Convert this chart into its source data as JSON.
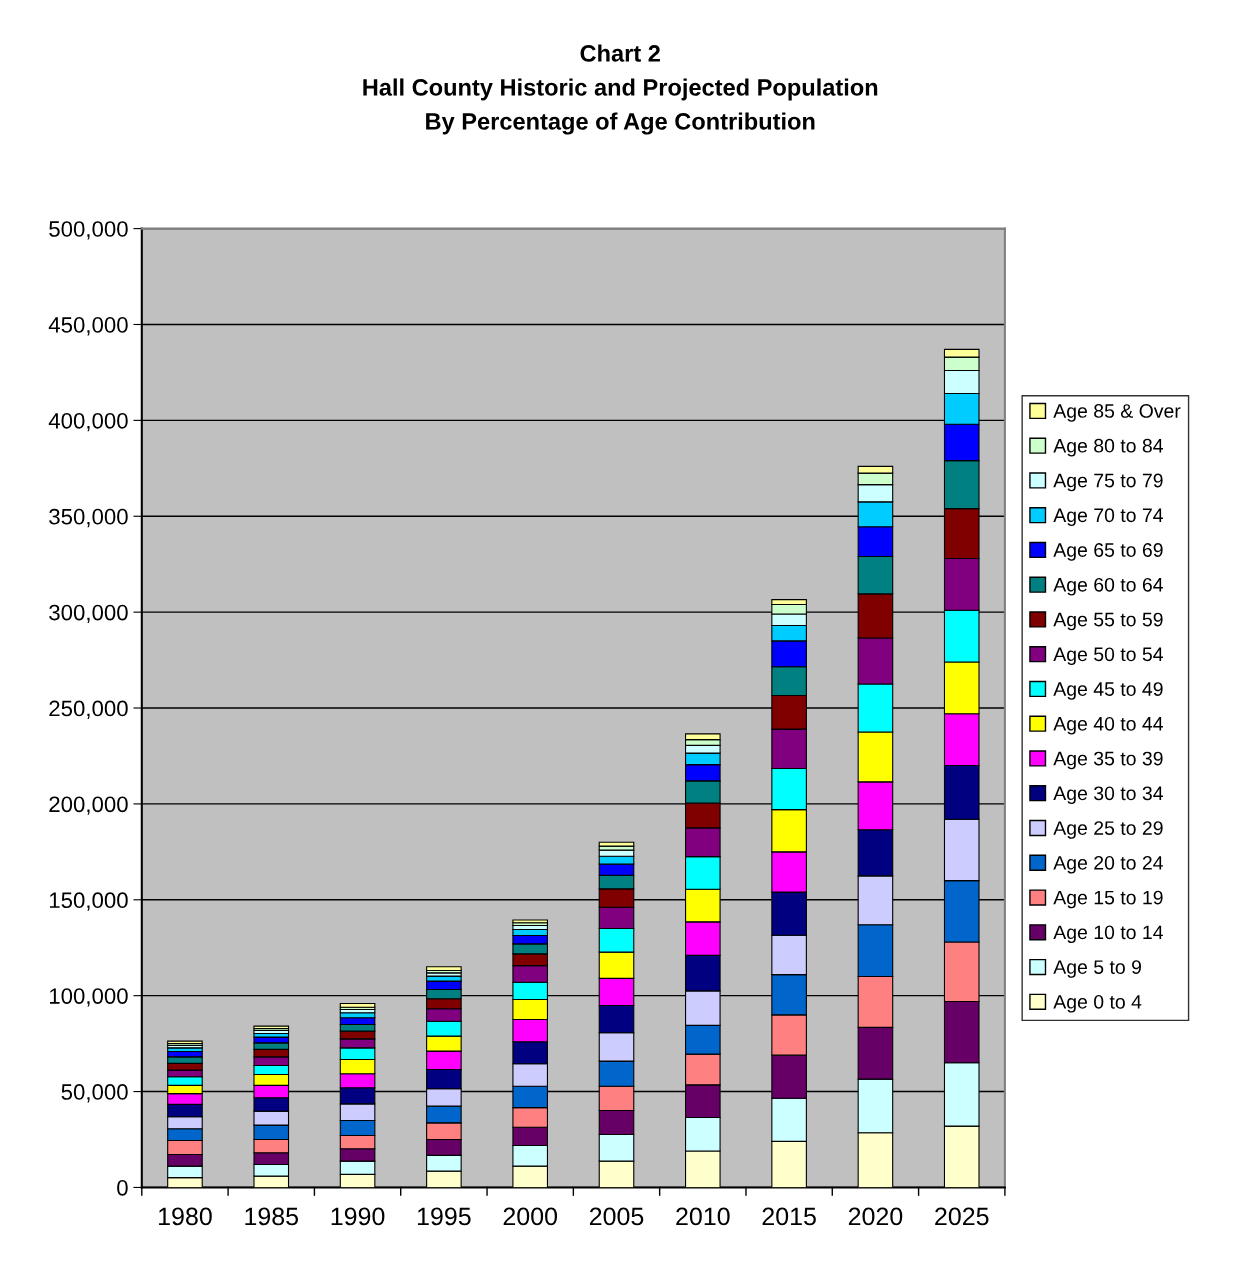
{
  "chart_data": {
    "type": "bar",
    "stacked": true,
    "title": "Chart 2\nHall County Historic and Projected Population\nBy Percentage of Age Contribution",
    "categories": [
      "1980",
      "1985",
      "1990",
      "1995",
      "2000",
      "2005",
      "2010",
      "2015",
      "2020",
      "2025"
    ],
    "series": [
      {
        "name": "Age 0 to 4",
        "color": "#ffffcc",
        "values": [
          5100,
          5900,
          6800,
          8500,
          11100,
          13700,
          19000,
          24000,
          28500,
          32000
        ]
      },
      {
        "name": "Age 5 to 9",
        "color": "#ccffff",
        "values": [
          6000,
          6100,
          6900,
          8200,
          10800,
          13900,
          17500,
          22500,
          28000,
          33000
        ]
      },
      {
        "name": "Age 10 to 14",
        "color": "#660066",
        "values": [
          6100,
          6100,
          6500,
          8300,
          9500,
          12500,
          17000,
          22500,
          27000,
          32000
        ]
      },
      {
        "name": "Age 15 to 19",
        "color": "#ff8080",
        "values": [
          7300,
          6900,
          6900,
          8700,
          10200,
          12700,
          16000,
          21000,
          26500,
          31000
        ]
      },
      {
        "name": "Age 20 to 24",
        "color": "#0066cc",
        "values": [
          6100,
          7500,
          7800,
          8700,
          11200,
          13100,
          15000,
          21000,
          27000,
          32000
        ]
      },
      {
        "name": "Age 25 to 29",
        "color": "#ccccff",
        "values": [
          6300,
          7300,
          8700,
          9100,
          11700,
          14800,
          18000,
          20500,
          25500,
          32000
        ]
      },
      {
        "name": "Age 30 to 34",
        "color": "#000080",
        "values": [
          6400,
          7000,
          8400,
          10000,
          11500,
          14200,
          18500,
          22500,
          24000,
          28000
        ]
      },
      {
        "name": "Age 35 to 39",
        "color": "#ff00ff",
        "values": [
          5600,
          6400,
          7300,
          9600,
          11600,
          14100,
          17500,
          21000,
          25000,
          27000
        ]
      },
      {
        "name": "Age 40 to 44",
        "color": "#ffff00",
        "values": [
          4300,
          5700,
          7400,
          7800,
          10400,
          13700,
          17000,
          22000,
          26000,
          27000
        ]
      },
      {
        "name": "Age 45 to 49",
        "color": "#00ffff",
        "values": [
          4500,
          4700,
          6100,
          7800,
          9000,
          12300,
          17000,
          21500,
          25000,
          27000
        ]
      },
      {
        "name": "Age 50 to 54",
        "color": "#800080",
        "values": [
          3500,
          4500,
          4700,
          6500,
          8700,
          11100,
          15000,
          20500,
          24000,
          27000
        ]
      },
      {
        "name": "Age 55 to 59",
        "color": "#800000",
        "values": [
          3500,
          3900,
          4000,
          5200,
          6100,
          9600,
          13000,
          17500,
          23000,
          26000
        ]
      },
      {
        "name": "Age 60 to 64",
        "color": "#008080",
        "values": [
          3400,
          3400,
          3500,
          4800,
          5200,
          7100,
          11500,
          15000,
          19500,
          25000
        ]
      },
      {
        "name": "Age 65 to 69",
        "color": "#0000ff",
        "values": [
          2800,
          3000,
          3500,
          4400,
          4400,
          5800,
          8500,
          13500,
          15500,
          19000
        ]
      },
      {
        "name": "Age 70 to 74",
        "color": "#00ccff",
        "values": [
          1900,
          1900,
          2600,
          2600,
          3100,
          4100,
          6000,
          8000,
          13000,
          16000
        ]
      },
      {
        "name": "Age 75 to 79",
        "color": "#ccffff",
        "values": [
          1300,
          1600,
          1700,
          1700,
          2100,
          3200,
          4000,
          6000,
          9000,
          12000
        ]
      },
      {
        "name": "Age 80 to 84",
        "color": "#ccffcc",
        "values": [
          1000,
          1000,
          1200,
          1200,
          1400,
          2100,
          3000,
          5000,
          6000,
          7000
        ]
      },
      {
        "name": "Age 85 & Over",
        "color": "#ffff99",
        "values": [
          1200,
          1200,
          1900,
          2000,
          1500,
          2000,
          3000,
          2500,
          3500,
          4000
        ]
      }
    ],
    "ylim": [
      0,
      500000
    ],
    "yticks": [
      0,
      {
        "value": 50000,
        "label": "50,000"
      },
      {
        "value": 100000,
        "label": "100,000"
      },
      {
        "value": 150000,
        "label": "150,000"
      },
      {
        "value": 200000,
        "label": "200,000"
      },
      {
        "value": 250000,
        "label": "250,000"
      },
      {
        "value": 300000,
        "label": "300,000"
      },
      {
        "value": 350000,
        "label": "350,000"
      },
      {
        "value": 400000,
        "label": "400,000"
      },
      {
        "value": 450000,
        "label": "450,000"
      },
      {
        "value": 500000,
        "label": "500,000"
      }
    ],
    "grid": "y",
    "legend": "right"
  }
}
